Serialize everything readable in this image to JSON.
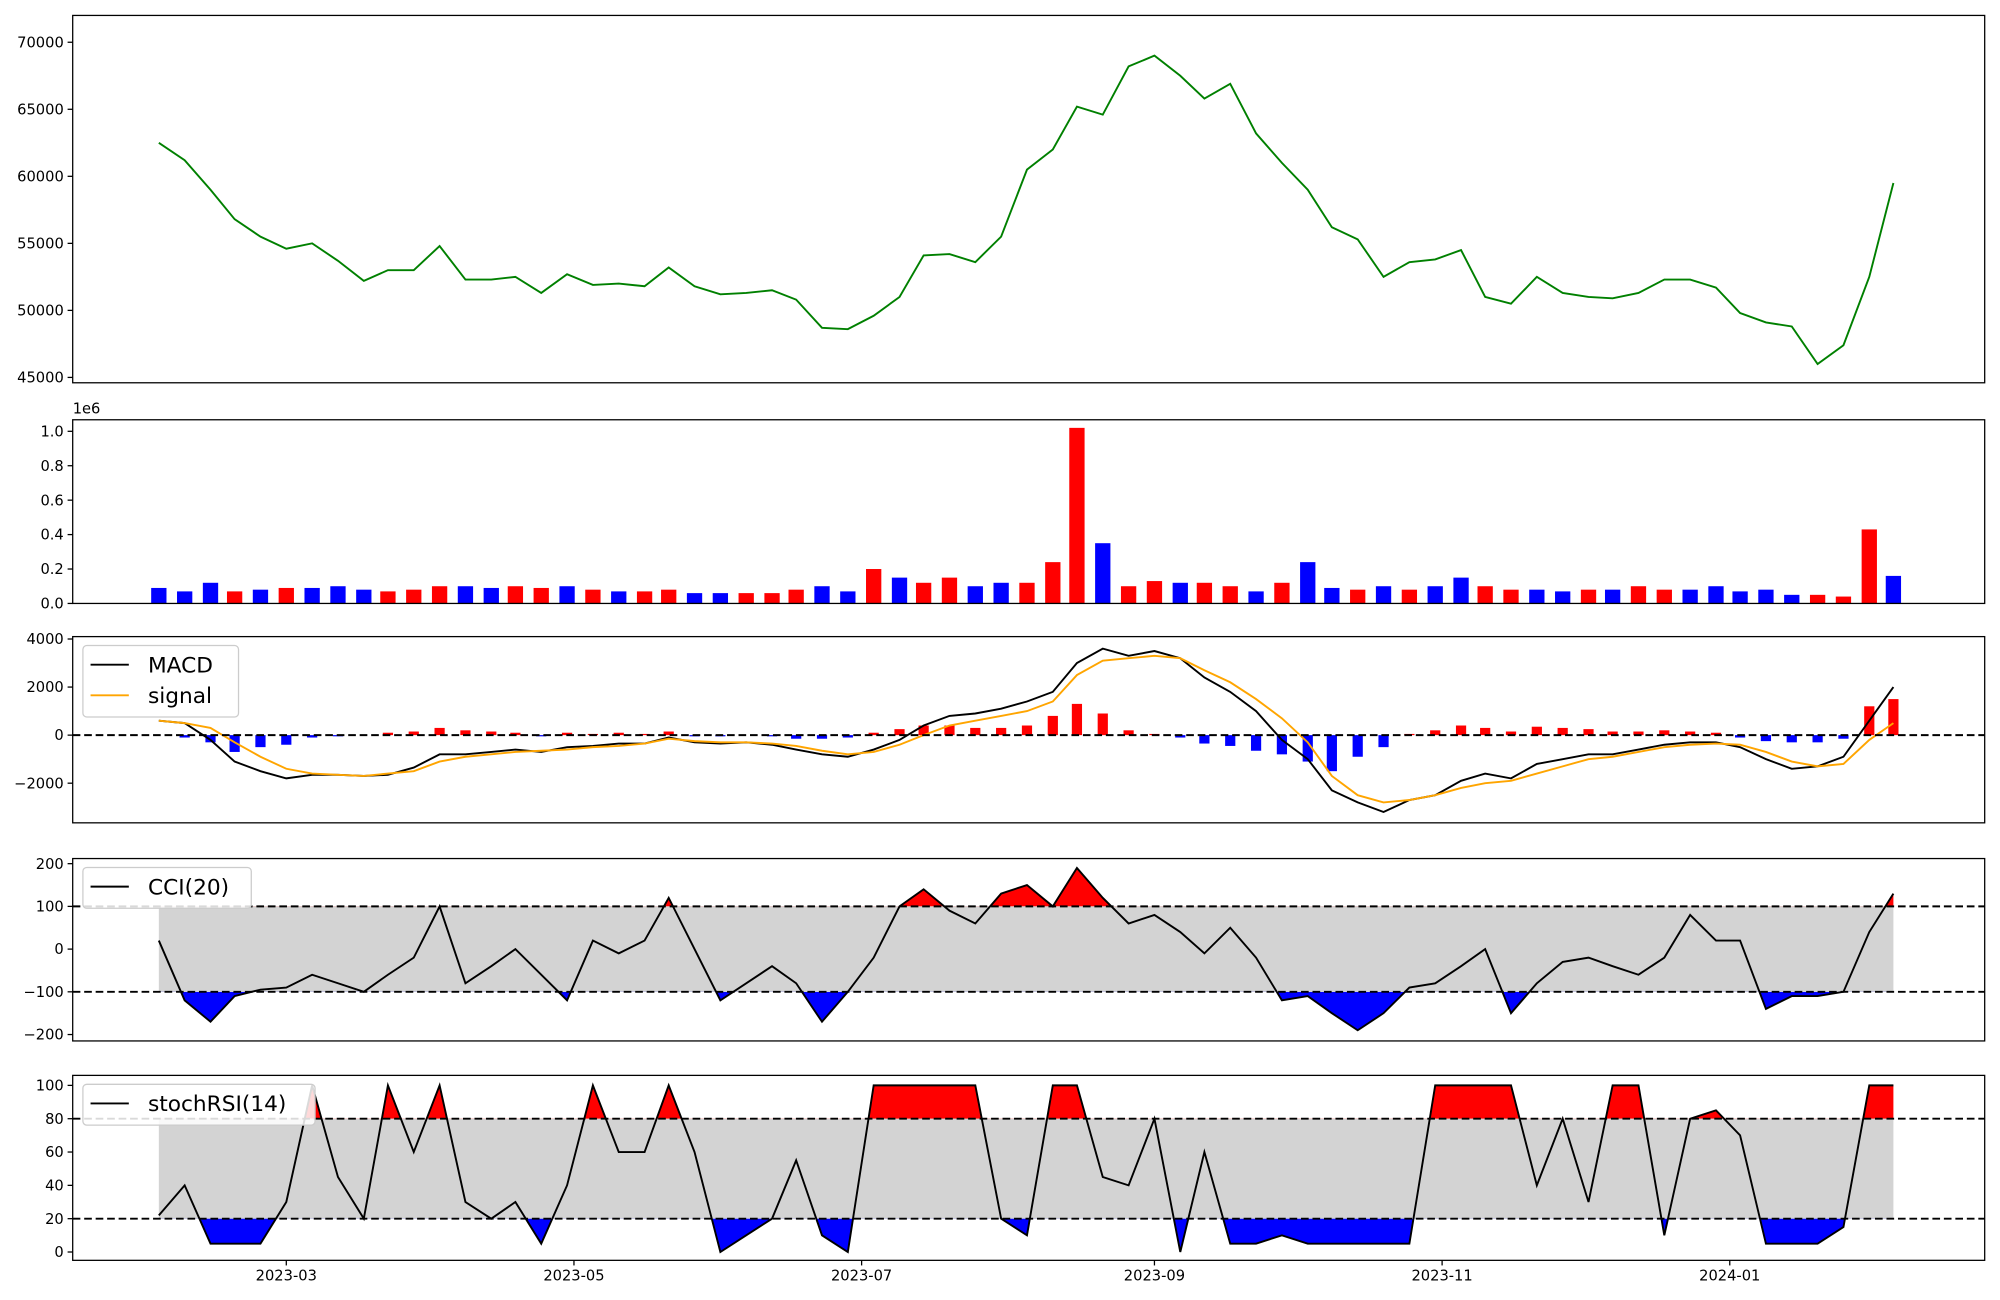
{
  "x": [
    2023.088,
    2023.103,
    2023.118,
    2023.132,
    2023.147,
    2023.162,
    2023.177,
    2023.192,
    2023.207,
    2023.221,
    2023.236,
    2023.251,
    2023.266,
    2023.281,
    2023.295,
    2023.31,
    2023.325,
    2023.34,
    2023.355,
    2023.37,
    2023.384,
    2023.399,
    2023.414,
    2023.429,
    2023.444,
    2023.458,
    2023.473,
    2023.488,
    2023.503,
    2023.518,
    2023.532,
    2023.547,
    2023.562,
    2023.577,
    2023.592,
    2023.607,
    2023.621,
    2023.636,
    2023.651,
    2023.666,
    2023.681,
    2023.695,
    2023.71,
    2023.725,
    2023.74,
    2023.755,
    2023.769,
    2023.784,
    2023.799,
    2023.814,
    2023.829,
    2023.844,
    2023.858,
    2023.873,
    2023.888,
    2023.903,
    2023.918,
    2023.932,
    2023.947,
    2023.962,
    2023.977,
    2023.992,
    2024.006,
    2024.021,
    2024.036,
    2024.051,
    2024.066,
    2024.081,
    2024.095
  ],
  "xlim": [
    2023.038,
    2024.148
  ],
  "xticks": [
    {
      "value": 2023.162,
      "label": "2023-03"
    },
    {
      "value": 2023.329,
      "label": "2023-05"
    },
    {
      "value": 2023.496,
      "label": "2023-07"
    },
    {
      "value": 2023.666,
      "label": "2023-09"
    },
    {
      "value": 2023.833,
      "label": "2023-11"
    },
    {
      "value": 2024.0,
      "label": "2024-01"
    }
  ],
  "chart_data": [
    {
      "type": "line",
      "color": "green",
      "values": [
        62500,
        61200,
        59000,
        56800,
        55500,
        54600,
        55000,
        53700,
        52200,
        53000,
        53000,
        54800,
        52300,
        52300,
        52500,
        51300,
        52700,
        51900,
        52000,
        51800,
        53200,
        51800,
        51200,
        51300,
        51500,
        50800,
        48700,
        48600,
        49600,
        51000,
        54100,
        54200,
        53600,
        55500,
        60500,
        62000,
        65200,
        64600,
        68200,
        69000,
        67500,
        65800,
        66900,
        63200,
        61000,
        59000,
        56200,
        55300,
        52500,
        53600,
        53800,
        54500,
        51000,
        50500,
        52500,
        51300,
        51000,
        50900,
        51300,
        52300,
        52300,
        51700,
        49800,
        49100,
        48800,
        46000,
        47400,
        52500,
        59500
      ],
      "ylim": [
        44600,
        72000
      ],
      "yticks": [
        45000,
        50000,
        55000,
        60000,
        65000,
        70000
      ]
    },
    {
      "type": "bar",
      "y_offset_label": "1e6",
      "values": [
        0.09,
        0.07,
        0.12,
        0.07,
        0.08,
        0.09,
        0.09,
        0.1,
        0.08,
        0.07,
        0.08,
        0.1,
        0.1,
        0.09,
        0.1,
        0.09,
        0.1,
        0.08,
        0.07,
        0.07,
        0.08,
        0.06,
        0.06,
        0.06,
        0.06,
        0.08,
        0.1,
        0.07,
        0.2,
        0.15,
        0.12,
        0.15,
        0.1,
        0.12,
        0.12,
        0.24,
        1.02,
        0.35,
        0.1,
        0.13,
        0.12,
        0.12,
        0.1,
        0.07,
        0.12,
        0.24,
        0.09,
        0.08,
        0.1,
        0.08,
        0.1,
        0.15,
        0.1,
        0.08,
        0.08,
        0.07,
        0.08,
        0.08,
        0.1,
        0.08,
        0.08,
        0.1,
        0.07,
        0.08,
        0.05,
        0.05,
        0.04,
        0.43,
        0.16
      ],
      "colors": [
        "blue",
        "blue",
        "blue",
        "red",
        "blue",
        "red",
        "blue",
        "blue",
        "blue",
        "red",
        "red",
        "red",
        "blue",
        "blue",
        "red",
        "red",
        "blue",
        "red",
        "blue",
        "red",
        "red",
        "blue",
        "blue",
        "red",
        "red",
        "red",
        "blue",
        "blue",
        "red",
        "blue",
        "red",
        "red",
        "blue",
        "blue",
        "red",
        "red",
        "red",
        "blue",
        "red",
        "red",
        "blue",
        "red",
        "red",
        "blue",
        "red",
        "blue",
        "blue",
        "red",
        "blue",
        "red",
        "blue",
        "blue",
        "red",
        "red",
        "blue",
        "blue",
        "red",
        "blue",
        "red",
        "red",
        "blue",
        "blue",
        "blue",
        "blue",
        "blue",
        "red",
        "red",
        "red",
        "blue"
      ],
      "ylim": [
        0,
        1.067
      ],
      "yticks": [
        {
          "value": 0,
          "label": "0.0"
        },
        {
          "value": 0.2,
          "label": "0.2"
        },
        {
          "value": 0.4,
          "label": "0.4"
        },
        {
          "value": 0.6,
          "label": "0.6"
        },
        {
          "value": 0.8,
          "label": "0.8"
        },
        {
          "value": 1.0,
          "label": "1.0"
        }
      ]
    },
    {
      "type": "macd",
      "legend": "upper left",
      "hlines": [
        0
      ],
      "series": [
        {
          "name": "MACD",
          "color": "black",
          "values": [
            600,
            500,
            -200,
            -1100,
            -1500,
            -1800,
            -1650,
            -1650,
            -1700,
            -1650,
            -1350,
            -800,
            -800,
            -700,
            -600,
            -700,
            -500,
            -450,
            -350,
            -350,
            -100,
            -300,
            -350,
            -300,
            -400,
            -600,
            -800,
            -900,
            -600,
            -200,
            400,
            800,
            900,
            1100,
            1400,
            1800,
            3000,
            3600,
            3300,
            3500,
            3200,
            2400,
            1800,
            1000,
            -200,
            -1000,
            -2300,
            -2800,
            -3200,
            -2700,
            -2500,
            -1900,
            -1600,
            -1800,
            -1200,
            -1000,
            -800,
            -800,
            -600,
            -400,
            -300,
            -300,
            -500,
            -1000,
            -1400,
            -1300,
            -900,
            600,
            2000
          ]
        },
        {
          "name": "signal",
          "color": "orange",
          "values": [
            600,
            500,
            300,
            -300,
            -900,
            -1400,
            -1600,
            -1650,
            -1700,
            -1600,
            -1500,
            -1100,
            -900,
            -800,
            -700,
            -650,
            -600,
            -500,
            -450,
            -350,
            -150,
            -250,
            -300,
            -300,
            -350,
            -450,
            -650,
            -800,
            -700,
            -400,
            0,
            400,
            600,
            800,
            1000,
            1400,
            2500,
            3100,
            3200,
            3300,
            3200,
            2700,
            2200,
            1500,
            700,
            -300,
            -1700,
            -2500,
            -2800,
            -2700,
            -2500,
            -2200,
            -2000,
            -1900,
            -1600,
            -1300,
            -1000,
            -900,
            -700,
            -500,
            -400,
            -350,
            -400,
            -700,
            -1100,
            -1300,
            -1200,
            -200,
            500
          ]
        }
      ],
      "histogram": {
        "positive_color": "red",
        "negative_color": "blue",
        "values": [
          0,
          -100,
          -300,
          -700,
          -500,
          -400,
          -100,
          -50,
          0,
          100,
          150,
          300,
          200,
          150,
          100,
          -50,
          100,
          50,
          100,
          50,
          150,
          -50,
          -50,
          0,
          -50,
          -150,
          -150,
          -100,
          100,
          250,
          400,
          400,
          300,
          300,
          400,
          800,
          1300,
          900,
          200,
          50,
          -100,
          -350,
          -450,
          -650,
          -800,
          -1100,
          -1500,
          -900,
          -500,
          50,
          200,
          400,
          300,
          150,
          350,
          300,
          250,
          150,
          150,
          200,
          150,
          100,
          -100,
          -250,
          -300,
          -300,
          -150,
          1200,
          1500
        ]
      },
      "ylim": [
        -3650,
        4100
      ],
      "yticks": [
        {
          "value": -2000,
          "label": "−2000"
        },
        0,
        2000,
        4000
      ]
    },
    {
      "type": "oscillator",
      "legend": "upper left",
      "hlines": [
        100,
        -100
      ],
      "band": [
        -100,
        100
      ],
      "band_color": "lightgray",
      "above_color": "red",
      "below_color": "blue",
      "series": [
        {
          "name": "CCI(20)",
          "color": "black",
          "values": [
            20,
            -120,
            -170,
            -110,
            -95,
            -90,
            -60,
            -80,
            -100,
            -60,
            -20,
            100,
            -80,
            -40,
            0,
            -60,
            -120,
            20,
            -10,
            20,
            120,
            0,
            -120,
            -80,
            -40,
            -80,
            -170,
            -100,
            -20,
            100,
            140,
            90,
            60,
            130,
            150,
            100,
            190,
            120,
            60,
            80,
            40,
            -10,
            50,
            -20,
            -120,
            -110,
            -150,
            -190,
            -150,
            -90,
            -80,
            -40,
            0,
            -150,
            -80,
            -30,
            -20,
            -40,
            -60,
            -20,
            80,
            20,
            20,
            -140,
            -110,
            -110,
            -100,
            40,
            130
          ]
        }
      ],
      "ylim": [
        -215,
        212
      ],
      "yticks": [
        {
          "value": -200,
          "label": "−200"
        },
        {
          "value": -100,
          "label": "−100"
        },
        0,
        100,
        200
      ]
    },
    {
      "type": "oscillator",
      "legend": "upper left",
      "hlines": [
        80,
        20
      ],
      "band": [
        20,
        80
      ],
      "band_color": "lightgray",
      "above_color": "red",
      "below_color": "blue",
      "show_xticks": true,
      "series": [
        {
          "name": "stochRSI(14)",
          "color": "black",
          "values": [
            22,
            40,
            5,
            5,
            5,
            30,
            100,
            45,
            20,
            100,
            60,
            100,
            30,
            20,
            30,
            5,
            40,
            100,
            60,
            60,
            100,
            60,
            0,
            10,
            20,
            55,
            10,
            0,
            100,
            100,
            100,
            100,
            100,
            20,
            10,
            100,
            100,
            45,
            40,
            80,
            0,
            60,
            5,
            5,
            10,
            5,
            5,
            5,
            5,
            5,
            100,
            100,
            100,
            100,
            40,
            80,
            30,
            100,
            100,
            10,
            80,
            85,
            70,
            5,
            5,
            5,
            15,
            100,
            100
          ]
        }
      ],
      "ylim": [
        -5,
        106
      ],
      "yticks": [
        0,
        20,
        40,
        60,
        80,
        100
      ]
    }
  ]
}
